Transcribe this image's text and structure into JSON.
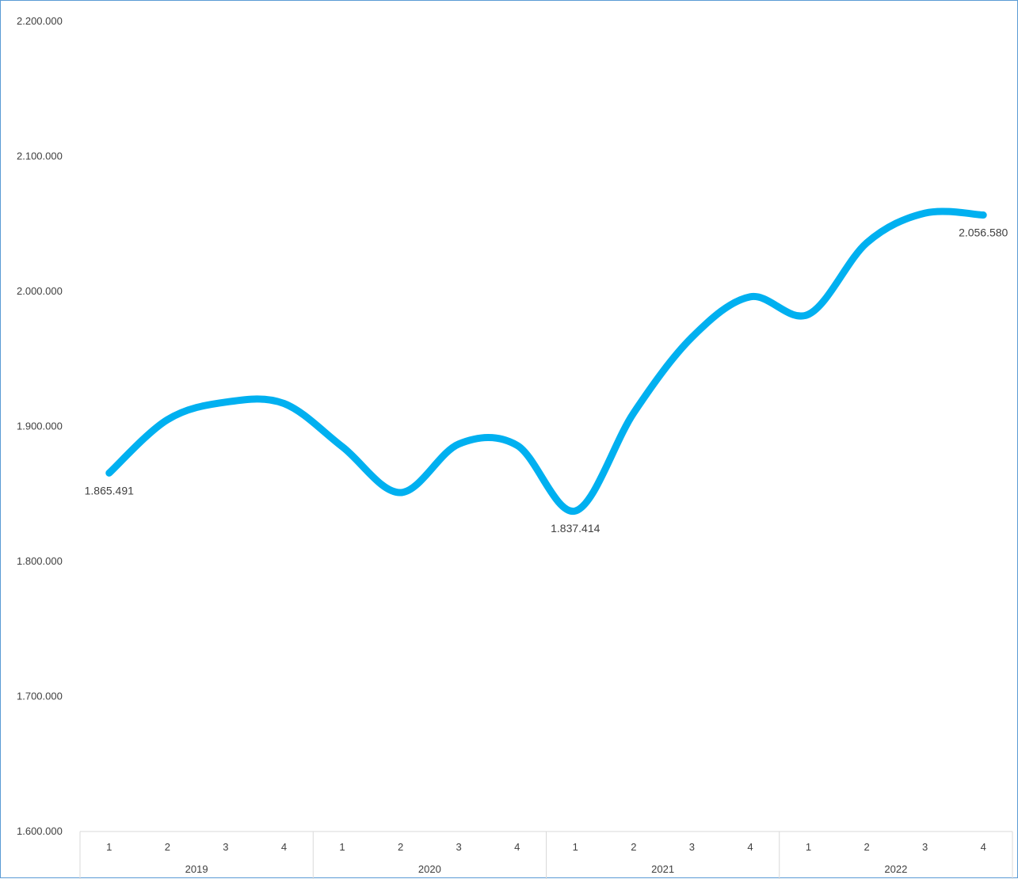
{
  "chart_data": {
    "type": "line",
    "title": "",
    "xlabel": "",
    "ylabel": "",
    "ylim": [
      1600000,
      2200000
    ],
    "yticks": [
      {
        "value": 1600000,
        "label": "1.600.000"
      },
      {
        "value": 1700000,
        "label": "1.700.000"
      },
      {
        "value": 1800000,
        "label": "1.800.000"
      },
      {
        "value": 1900000,
        "label": "1.900.000"
      },
      {
        "value": 2000000,
        "label": "2.000.000"
      },
      {
        "value": 2100000,
        "label": "2.100.000"
      },
      {
        "value": 2200000,
        "label": "2.200.000"
      }
    ],
    "groups": [
      {
        "label": "2019",
        "quarters": [
          "1",
          "2",
          "3",
          "4"
        ]
      },
      {
        "label": "2020",
        "quarters": [
          "1",
          "2",
          "3",
          "4"
        ]
      },
      {
        "label": "2021",
        "quarters": [
          "1",
          "2",
          "3",
          "4"
        ]
      },
      {
        "label": "2022",
        "quarters": [
          "1",
          "2",
          "3",
          "4"
        ]
      }
    ],
    "series": [
      {
        "color": "#00b0f0",
        "smooth": true,
        "values": [
          1865491,
          1905000,
          1918000,
          1917000,
          1885000,
          1851000,
          1887000,
          1886000,
          1837414,
          1910000,
          1966000,
          1996000,
          1983000,
          2036000,
          2058000,
          2056580
        ]
      }
    ],
    "data_labels": [
      {
        "index": 0,
        "text": "1.865.491",
        "position": "below"
      },
      {
        "index": 8,
        "text": "1.837.414",
        "position": "below"
      },
      {
        "index": 15,
        "text": "2.056.580",
        "position": "below"
      }
    ],
    "grid": false,
    "legend": "none"
  }
}
